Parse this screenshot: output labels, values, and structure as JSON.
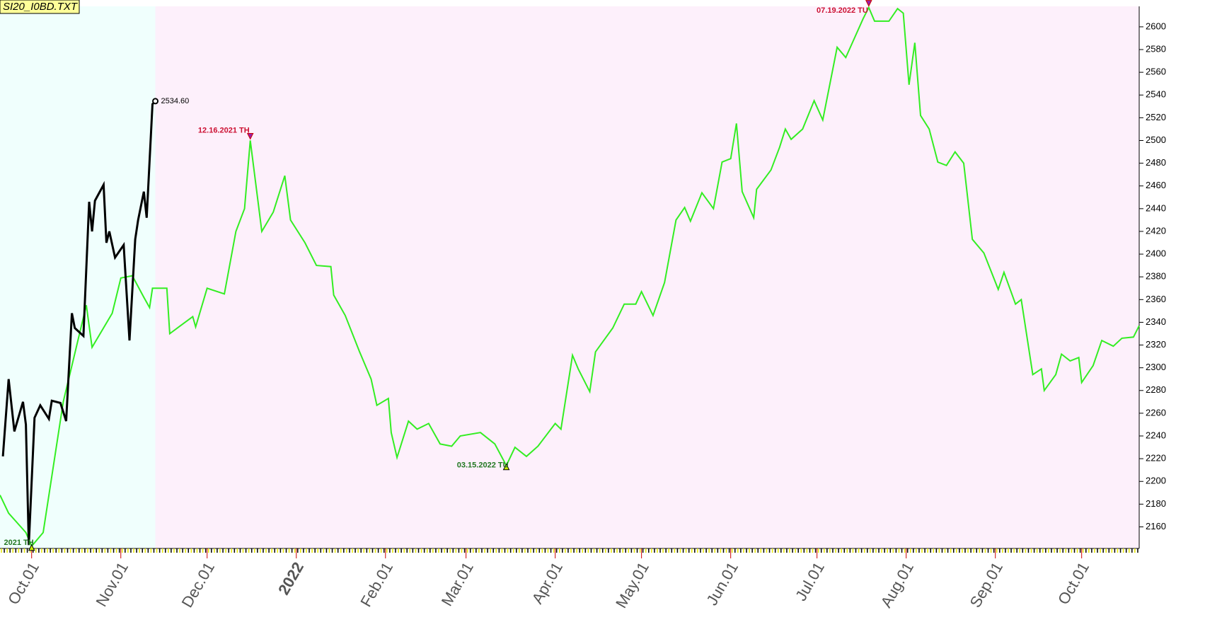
{
  "chart_data": {
    "type": "line",
    "title": "SI20_I0BD.TXT",
    "xlim": [
      "2021-09-20",
      "2022-10-21"
    ],
    "ylim": [
      2141,
      2618
    ],
    "yticks": [
      2160,
      2180,
      2200,
      2220,
      2240,
      2260,
      2280,
      2300,
      2320,
      2340,
      2360,
      2380,
      2400,
      2420,
      2440,
      2460,
      2480,
      2500,
      2520,
      2540,
      2560,
      2580,
      2600
    ],
    "xticks": [
      {
        "value": "2021-10-01",
        "label": "Oct.01"
      },
      {
        "value": "2021-11-01",
        "label": "Nov.01"
      },
      {
        "value": "2021-12-01",
        "label": "Dec.01"
      },
      {
        "value": "2022-01-01",
        "label": "2022",
        "color": "#800000"
      },
      {
        "value": "2022-02-01",
        "label": "Feb.01"
      },
      {
        "value": "2022-03-01",
        "label": "Mar.01"
      },
      {
        "value": "2022-04-01",
        "label": "Apr.01"
      },
      {
        "value": "2022-05-01",
        "label": "May.01"
      },
      {
        "value": "2022-06-01",
        "label": "Jun.01"
      },
      {
        "value": "2022-07-01",
        "label": "Jul.01"
      },
      {
        "value": "2022-08-01",
        "label": "Aug.01"
      },
      {
        "value": "2022-09-01",
        "label": "Sep.01"
      },
      {
        "value": "2022-10-01",
        "label": "Oct.01"
      }
    ],
    "series": [
      {
        "color": "#33ee22",
        "x": [
          "2021-09-20",
          "2021-09-23",
          "2021-09-29",
          "2021-10-01",
          "2021-10-05",
          "2021-10-12",
          "2021-10-20",
          "2021-10-22",
          "2021-10-29",
          "2021-11-01",
          "2021-11-05",
          "2021-11-09",
          "2021-11-11",
          "2021-11-12",
          "2021-11-17",
          "2021-11-18",
          "2021-11-26",
          "2021-11-27",
          "2021-12-01",
          "2021-12-07",
          "2021-12-11",
          "2021-12-14",
          "2021-12-16",
          "2021-12-20",
          "2021-12-24",
          "2021-12-28",
          "2021-12-30",
          "2022-01-04",
          "2022-01-08",
          "2022-01-13",
          "2022-01-14",
          "2022-01-18",
          "2022-01-23",
          "2022-01-27",
          "2022-01-29",
          "2022-02-02",
          "2022-02-03",
          "2022-02-05",
          "2022-02-09",
          "2022-02-12",
          "2022-02-16",
          "2022-02-20",
          "2022-02-24",
          "2022-02-27",
          "2022-03-06",
          "2022-03-11",
          "2022-03-15",
          "2022-03-18",
          "2022-03-22",
          "2022-03-26",
          "2022-04-01",
          "2022-04-03",
          "2022-04-07",
          "2022-04-09",
          "2022-04-13",
          "2022-04-15",
          "2022-04-21",
          "2022-04-25",
          "2022-04-29",
          "2022-05-01",
          "2022-05-05",
          "2022-05-09",
          "2022-05-13",
          "2022-05-16",
          "2022-05-18",
          "2022-05-22",
          "2022-05-26",
          "2022-05-29",
          "2022-06-01",
          "2022-06-03",
          "2022-06-05",
          "2022-06-09",
          "2022-06-10",
          "2022-06-15",
          "2022-06-18",
          "2022-06-20",
          "2022-06-22",
          "2022-06-26",
          "2022-06-30",
          "2022-07-03",
          "2022-07-08",
          "2022-07-11",
          "2022-07-14",
          "2022-07-17",
          "2022-07-19",
          "2022-07-21",
          "2022-07-24",
          "2022-07-26",
          "2022-07-29",
          "2022-07-31",
          "2022-08-02",
          "2022-08-04",
          "2022-08-06",
          "2022-08-09",
          "2022-08-12",
          "2022-08-15",
          "2022-08-18",
          "2022-08-21",
          "2022-08-24",
          "2022-08-28",
          "2022-09-02",
          "2022-09-04",
          "2022-09-08",
          "2022-09-10",
          "2022-09-14",
          "2022-09-17",
          "2022-09-18",
          "2022-09-22",
          "2022-09-24",
          "2022-09-27",
          "2022-09-30",
          "2022-10-01",
          "2022-10-05",
          "2022-10-08",
          "2022-10-12",
          "2022-10-15",
          "2022-10-19",
          "2022-10-21"
        ],
        "values": [
          2188,
          2172,
          2155,
          2143,
          2155,
          2270,
          2355,
          2318,
          2348,
          2379,
          2381,
          2362,
          2353,
          2370,
          2370,
          2330,
          2345,
          2336,
          2370,
          2365,
          2420,
          2440,
          2500,
          2420,
          2437,
          2469,
          2430,
          2410,
          2390,
          2389,
          2364,
          2346,
          2314,
          2290,
          2267,
          2273,
          2243,
          2221,
          2253,
          2246,
          2251,
          2233,
          2231,
          2240,
          2243,
          2233,
          2214,
          2230,
          2222,
          2231,
          2251,
          2246,
          2311,
          2299,
          2279,
          2314,
          2335,
          2356,
          2356,
          2367,
          2346,
          2375,
          2430,
          2441,
          2429,
          2454,
          2440,
          2481,
          2484,
          2515,
          2455,
          2432,
          2457,
          2474,
          2494,
          2510,
          2501,
          2510,
          2535,
          2518,
          2582,
          2573,
          2590,
          2607,
          2617,
          2605,
          2605,
          2605,
          2616,
          2612,
          2549,
          2586,
          2522,
          2510,
          2481,
          2478,
          2490,
          2480,
          2413,
          2401,
          2369,
          2384,
          2356,
          2360,
          2294,
          2299,
          2280,
          2294,
          2312,
          2306,
          2309,
          2287,
          2302,
          2324,
          2319,
          2326,
          2327,
          2337
        ]
      },
      {
        "color": "#000000",
        "x": [
          "2021-09-21",
          "2021-09-23",
          "2021-09-25",
          "2021-09-28",
          "2021-09-29",
          "2021-09-30",
          "2021-10-02",
          "2021-10-04",
          "2021-10-07",
          "2021-10-08",
          "2021-10-11",
          "2021-10-13",
          "2021-10-15",
          "2021-10-16",
          "2021-10-19",
          "2021-10-21",
          "2021-10-22",
          "2021-10-23",
          "2021-10-26",
          "2021-10-27",
          "2021-10-28",
          "2021-10-30",
          "2021-11-02",
          "2021-11-04",
          "2021-11-06",
          "2021-11-07",
          "2021-11-09",
          "2021-11-10",
          "2021-11-12",
          "2021-11-13"
        ],
        "values": [
          2222,
          2290,
          2244,
          2270,
          2250,
          2144,
          2256,
          2267,
          2255,
          2271,
          2269,
          2253,
          2348,
          2335,
          2328,
          2446,
          2420,
          2447,
          2461,
          2410,
          2420,
          2397,
          2408,
          2324,
          2413,
          2430,
          2455,
          2432,
          2532,
          2534.6
        ],
        "value_labels": [
          null,
          null,
          null,
          null,
          null,
          null,
          null,
          null,
          null,
          null,
          null,
          null,
          null,
          null,
          null,
          null,
          null,
          null,
          null,
          null,
          null,
          null,
          null,
          null,
          null,
          null,
          null,
          null,
          null,
          "2534.60"
        ]
      }
    ],
    "annotations": [
      {
        "text": "12.16.2021 TH",
        "x": "2021-12-16",
        "kind": "high",
        "color": "#cc1133"
      },
      {
        "text": "07.19.2022 TU",
        "x": "2022-07-19",
        "kind": "high",
        "color": "#cc1133"
      },
      {
        "text": "03.15.2022 TU",
        "x": "2022-03-15",
        "kind": "low",
        "color": "#227722"
      },
      {
        "text": "2021 TH",
        "x": "2021-10-01",
        "kind": "low",
        "color": "#227722"
      }
    ]
  }
}
